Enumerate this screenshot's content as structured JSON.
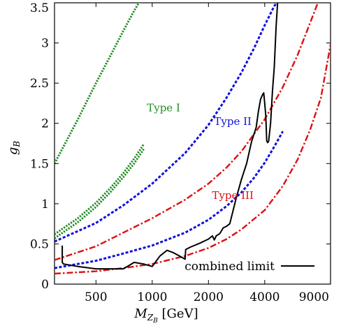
{
  "chart_data": {
    "type": "line",
    "xlabel_main": "M",
    "xlabel_sub": "Z",
    "xlabel_subsub": "B",
    "xlabel_unit": " [GeV]",
    "ylabel_main": "g",
    "ylabel_sub": "B",
    "xscale": "log",
    "xlim": [
      300,
      9000
    ],
    "ylim": [
      0,
      3.5
    ],
    "x_ticks": [
      {
        "value": 500,
        "label": "500"
      },
      {
        "value": 1000,
        "label": "1000"
      },
      {
        "value": 2000,
        "label": "2000"
      },
      {
        "value": 4000,
        "label": "4000"
      },
      {
        "value": 9000,
        "label": "9000"
      }
    ],
    "y_ticks": [
      {
        "value": 0,
        "label": "0"
      },
      {
        "value": 0.5,
        "label": "0.5"
      },
      {
        "value": 1,
        "label": "1"
      },
      {
        "value": 1.5,
        "label": "1.5"
      },
      {
        "value": 2,
        "label": "2"
      },
      {
        "value": 2.5,
        "label": "2.5"
      },
      {
        "value": 3,
        "label": "3"
      },
      {
        "value": 3.5,
        "label": "3.5"
      }
    ],
    "grid": false,
    "legend": {
      "position": "bottom-right",
      "label": "combined limit",
      "color": "#000000"
    },
    "annotations": [
      {
        "text": "Type I",
        "color": "#228B22",
        "x": 1150,
        "y": 2.15
      },
      {
        "text": "Type II",
        "color": "#1010DD",
        "x": 2700,
        "y": 1.98
      },
      {
        "text": "Type III",
        "color": "#DD1010",
        "x": 2700,
        "y": 1.06
      }
    ],
    "series": [
      {
        "style": "dotted",
        "color": "#228B22",
        "x": [
          300,
          400,
          500,
          600,
          700,
          800,
          900
        ],
        "y": [
          1.5,
          2.05,
          2.5,
          2.85,
          3.15,
          3.4,
          3.6
        ]
      },
      {
        "style": "dotted",
        "color": "#228B22",
        "x": [
          300,
          400,
          500,
          600,
          700,
          800,
          900
        ],
        "y": [
          0.62,
          0.82,
          1.01,
          1.2,
          1.38,
          1.56,
          1.74
        ]
      },
      {
        "style": "dotted",
        "color": "#228B22",
        "x": [
          300,
          400,
          500,
          600,
          700,
          800,
          900
        ],
        "y": [
          0.57,
          0.77,
          0.96,
          1.15,
          1.33,
          1.5,
          1.68
        ]
      },
      {
        "style": "dashed",
        "color": "#1010DD",
        "x": [
          300,
          500,
          700,
          1000,
          1500,
          2000,
          2500,
          3000,
          3500,
          4000,
          4500,
          5000
        ],
        "y": [
          0.53,
          0.76,
          0.98,
          1.25,
          1.63,
          1.98,
          2.32,
          2.63,
          2.93,
          3.22,
          3.46,
          3.6
        ]
      },
      {
        "style": "dashed",
        "color": "#1010DD",
        "x": [
          300,
          500,
          700,
          1000,
          1500,
          2000,
          2500,
          3000,
          3500,
          4000,
          4500,
          5000
        ],
        "y": [
          0.2,
          0.29,
          0.38,
          0.48,
          0.64,
          0.8,
          0.97,
          1.14,
          1.32,
          1.51,
          1.71,
          1.9
        ]
      },
      {
        "style": "dashdot",
        "color": "#DD1010",
        "x": [
          300,
          500,
          700,
          1000,
          1500,
          2000,
          2500,
          3000,
          4000,
          5000,
          6000,
          7000,
          8000,
          9000
        ],
        "y": [
          0.3,
          0.47,
          0.64,
          0.82,
          1.05,
          1.25,
          1.45,
          1.65,
          2.05,
          2.45,
          2.85,
          3.25,
          3.6,
          3.8
        ]
      },
      {
        "style": "dashdot",
        "color": "#DD1010",
        "x": [
          300,
          500,
          700,
          1000,
          1500,
          2000,
          2500,
          3000,
          4000,
          5000,
          6000,
          7000,
          8000,
          9000
        ],
        "y": [
          0.13,
          0.16,
          0.2,
          0.25,
          0.35,
          0.45,
          0.56,
          0.68,
          0.92,
          1.22,
          1.55,
          1.92,
          2.32,
          2.98
        ]
      },
      {
        "style": "solid",
        "color": "#000000",
        "x": [
          330,
          330,
          335,
          400,
          500,
          600,
          700,
          750,
          800,
          900,
          1000,
          1100,
          1200,
          1300,
          1400,
          1500,
          1510,
          1600,
          1800,
          2000,
          2100,
          2150,
          2200,
          2300,
          2400,
          2500,
          2600,
          2800,
          3000,
          3200,
          3400,
          3600,
          3700,
          3800,
          3900,
          3950,
          4000,
          4050,
          4100,
          4150,
          4200,
          4300,
          4400,
          4500,
          4600,
          4700,
          4800
        ],
        "y": [
          0.48,
          0.27,
          0.25,
          0.22,
          0.19,
          0.19,
          0.19,
          0.23,
          0.27,
          0.25,
          0.22,
          0.35,
          0.42,
          0.39,
          0.35,
          0.31,
          0.43,
          0.46,
          0.51,
          0.56,
          0.6,
          0.55,
          0.6,
          0.63,
          0.7,
          0.72,
          0.75,
          1.05,
          1.3,
          1.5,
          1.77,
          1.95,
          2.15,
          2.3,
          2.36,
          2.38,
          2.25,
          2.1,
          1.78,
          1.76,
          1.78,
          2.0,
          2.4,
          2.7,
          3.2,
          3.55,
          3.6
        ]
      }
    ]
  }
}
